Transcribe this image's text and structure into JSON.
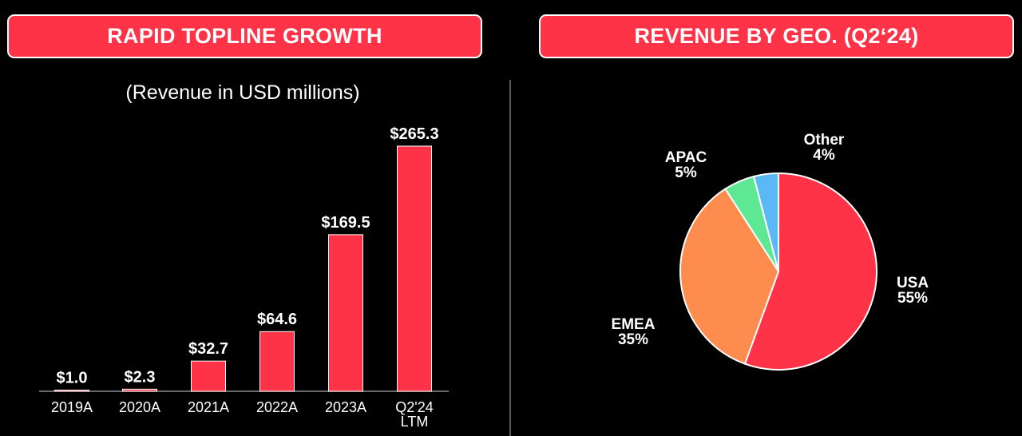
{
  "left_panel": {
    "banner": "RAPID TOPLINE GROWTH",
    "subtitle": "(Revenue in USD millions)"
  },
  "right_panel": {
    "banner": "REVENUE BY GEO. (Q2‘24)"
  },
  "colors": {
    "brand_red": "#ff3347",
    "emea_orange": "#ff8c4f",
    "apac_green": "#5ee893",
    "other_blue": "#5ab8f5",
    "background": "#000000"
  },
  "chart_data": [
    {
      "type": "bar",
      "categories": [
        "2019A",
        "2020A",
        "2021A",
        "2022A",
        "2023A",
        "Q2'24\nLTM"
      ],
      "values": [
        1.0,
        2.3,
        32.7,
        64.6,
        169.5,
        265.3
      ],
      "value_labels": [
        "$1.0",
        "$2.3",
        "$32.7",
        "$64.6",
        "$169.5",
        "$265.3"
      ],
      "title": "(Revenue in USD millions)",
      "xlabel": "",
      "ylabel": "",
      "ylim": [
        0,
        265.3
      ],
      "grid": false,
      "legend": "none"
    },
    {
      "type": "pie",
      "title": "REVENUE BY GEO. (Q2‘24)",
      "slices": [
        {
          "label": "USA",
          "value": 55,
          "pct_label": "55%"
        },
        {
          "label": "EMEA",
          "value": 35,
          "pct_label": "35%"
        },
        {
          "label": "APAC",
          "value": 5,
          "pct_label": "5%"
        },
        {
          "label": "Other",
          "value": 4,
          "pct_label": "4%"
        }
      ],
      "legend": "none"
    }
  ]
}
